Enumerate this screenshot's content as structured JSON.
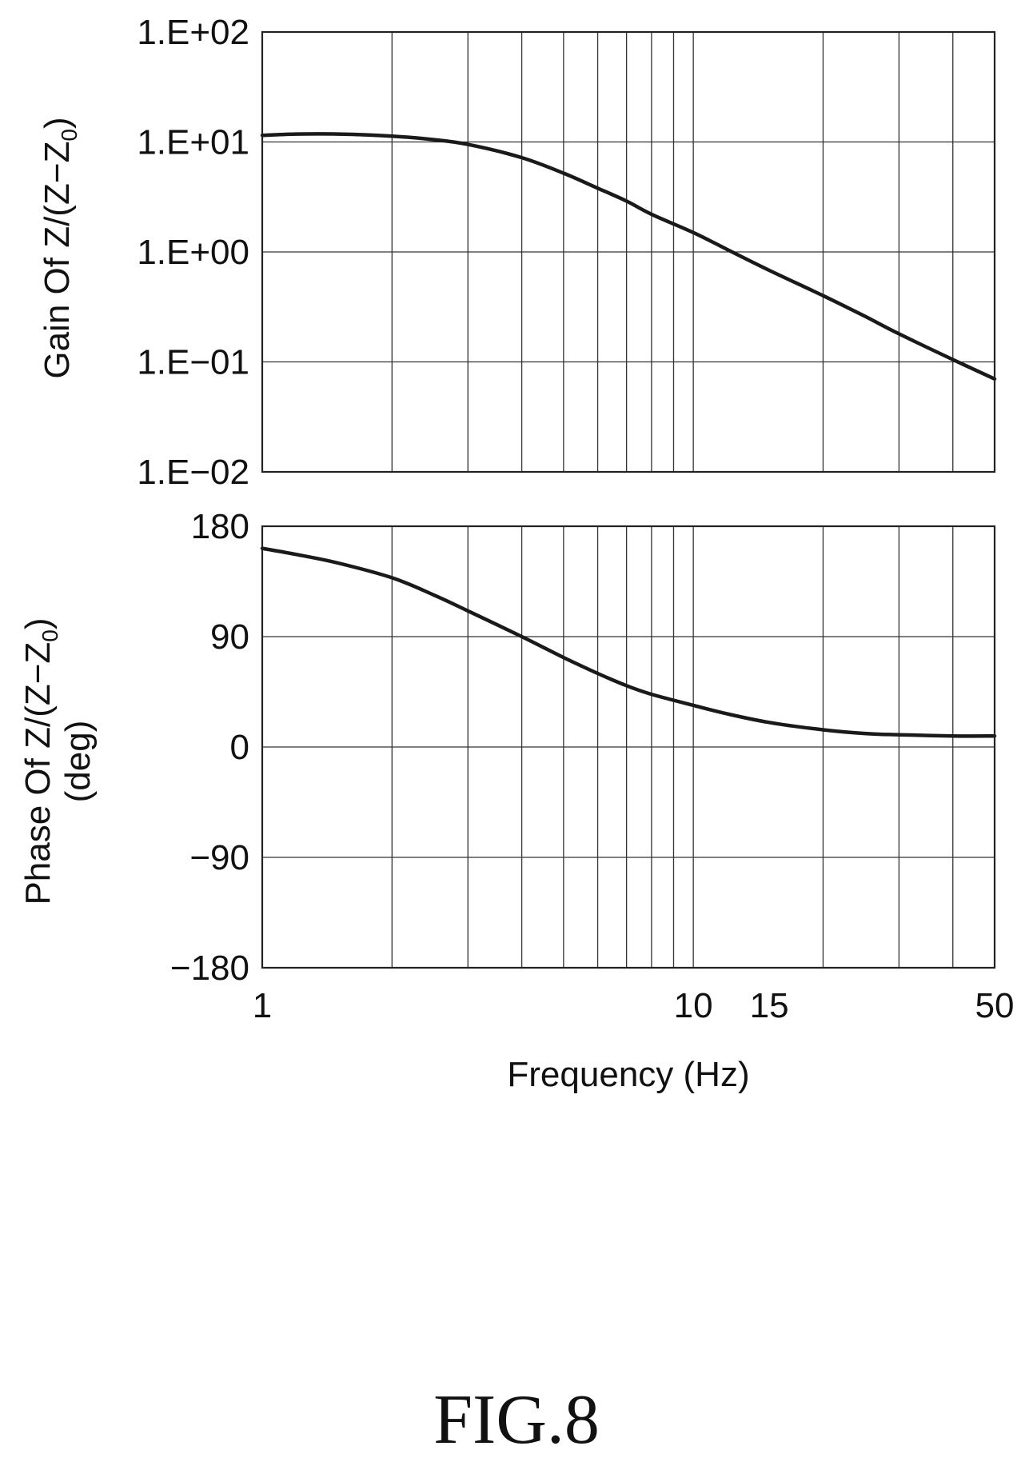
{
  "figure_label": "FIG.8",
  "chart_data": [
    {
      "type": "line",
      "name": "gain",
      "xscale": "log",
      "yscale": "log",
      "xlim": [
        1,
        50
      ],
      "ylim": [
        0.01,
        100
      ],
      "ylabel": "Gain Of Z/(Z−Z",
      "ylabel_sub": "0",
      "ylabel_close": ")",
      "yticks": [
        {
          "value": 100,
          "label": "1.E+02"
        },
        {
          "value": 10,
          "label": "1.E+01"
        },
        {
          "value": 1,
          "label": "1.E+00"
        },
        {
          "value": 0.1,
          "label": "1.E−01"
        },
        {
          "value": 0.01,
          "label": "1.E−02"
        }
      ],
      "grid": true,
      "series": [
        {
          "x": [
            1,
            1.2,
            1.5,
            2,
            2.5,
            3,
            4,
            5,
            6,
            7,
            8,
            10,
            12,
            15,
            20,
            25,
            30,
            40,
            50
          ],
          "y": [
            11.5,
            11.8,
            11.8,
            11.3,
            10.5,
            9.5,
            7.2,
            5.2,
            3.8,
            2.9,
            2.2,
            1.5,
            1.05,
            0.68,
            0.4,
            0.26,
            0.18,
            0.105,
            0.07
          ]
        }
      ]
    },
    {
      "type": "line",
      "name": "phase",
      "xscale": "log",
      "xlim": [
        1,
        50
      ],
      "ylim": [
        -180,
        180
      ],
      "ylabel": "Phase Of Z/(Z−Z",
      "ylabel_sub": "0",
      "ylabel_close": ")",
      "ylabel_unit": "(deg)",
      "xlabel": "Frequency (Hz)",
      "yticks": [
        {
          "value": 180,
          "label": "180"
        },
        {
          "value": 90,
          "label": "90"
        },
        {
          "value": 0,
          "label": "0"
        },
        {
          "value": -90,
          "label": "−90"
        },
        {
          "value": -180,
          "label": "−180"
        }
      ],
      "xticks": [
        {
          "value": 1,
          "label": "1"
        },
        {
          "value": 10,
          "label": "10"
        },
        {
          "value": 15,
          "label": "15"
        },
        {
          "value": 50,
          "label": "50"
        }
      ],
      "grid": true,
      "series": [
        {
          "x": [
            1,
            1.2,
            1.5,
            2,
            2.5,
            3,
            4,
            5,
            6,
            7,
            8,
            10,
            12,
            15,
            20,
            25,
            30,
            40,
            50
          ],
          "y": [
            162,
            157,
            150,
            138,
            124,
            111,
            90,
            73,
            60,
            50,
            43,
            34,
            27,
            20,
            14,
            11,
            10,
            9,
            9
          ]
        }
      ]
    }
  ]
}
